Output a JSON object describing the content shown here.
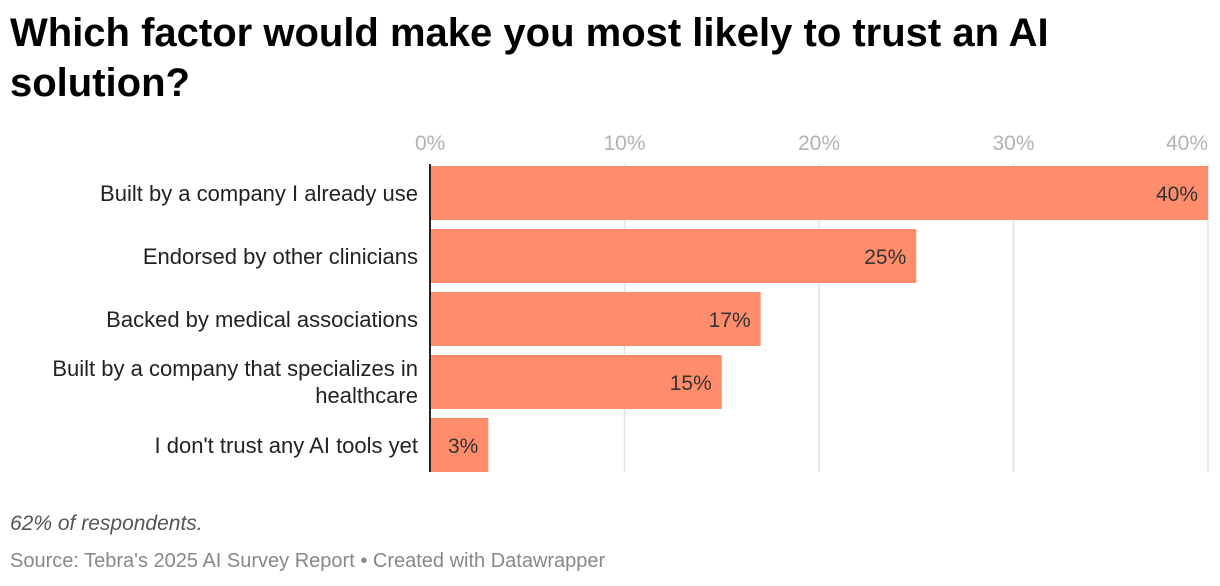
{
  "title": "Which factor would make you most likely to trust an AI solution?",
  "chart_data": {
    "type": "bar",
    "orientation": "horizontal",
    "categories": [
      "Built by a company I already use",
      "Endorsed by other clinicians",
      "Backed by medical associations",
      "Built by a company that specializes in healthcare",
      "I don't trust any AI tools yet"
    ],
    "values": [
      40,
      25,
      17,
      15,
      3
    ],
    "value_labels": [
      "40%",
      "25%",
      "17%",
      "15%",
      "3%"
    ],
    "xlim": [
      0,
      40
    ],
    "ticks": [
      0,
      10,
      20,
      30,
      40
    ],
    "tick_labels": [
      "0%",
      "10%",
      "20%",
      "30%",
      "40%"
    ],
    "bar_color": "#ff8c6b",
    "grid": true,
    "axis_position": "top"
  },
  "note": "62% of respondents.",
  "source": "Source: Tebra's 2025 AI Survey Report • Created with Datawrapper"
}
